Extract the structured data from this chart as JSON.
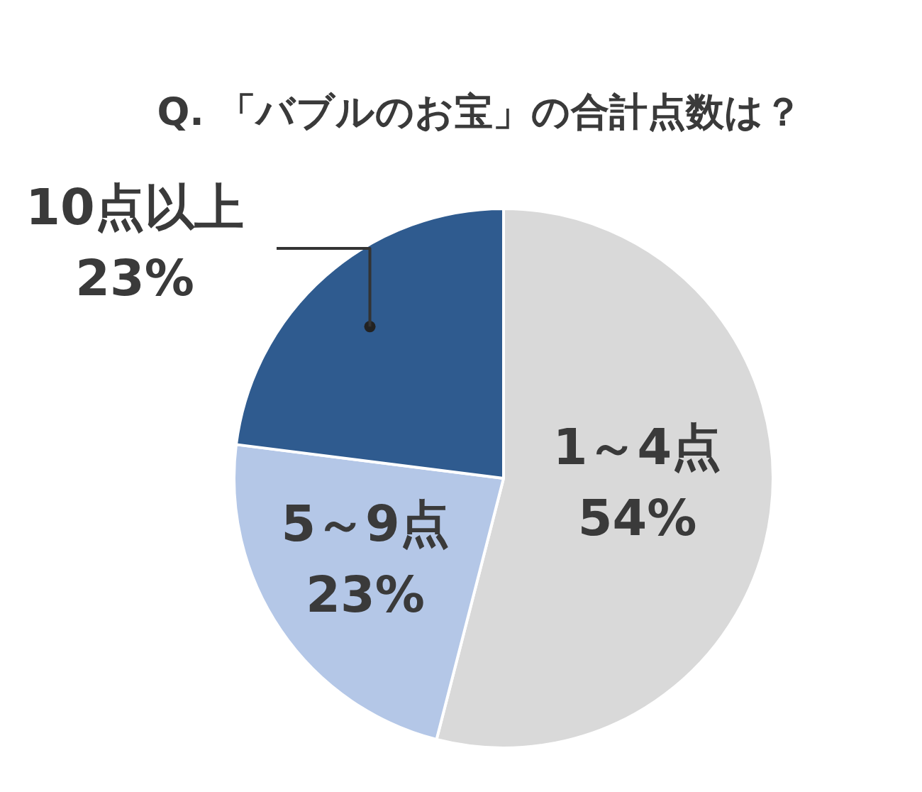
{
  "chart_data": {
    "type": "pie",
    "title": "Q. 「バブルのお宝」の合計点数は？",
    "categories": [
      "1～4点",
      "5～9点",
      "10点以上"
    ],
    "values": [
      54,
      23,
      23
    ],
    "value_labels": [
      "54%",
      "23%",
      "23%"
    ],
    "colors": [
      "#d9d9d9",
      "#b4c7e7",
      "#2f5b8f"
    ]
  }
}
